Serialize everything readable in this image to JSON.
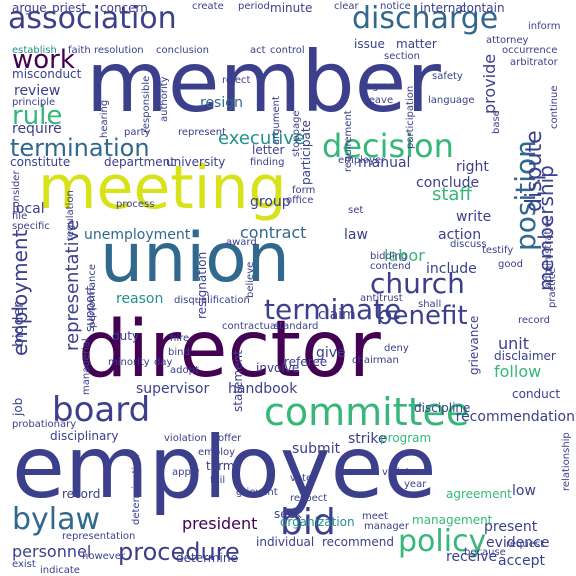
{
  "palette": {
    "dark_purple": "#440154",
    "indigo": "#3b3f8c",
    "blue": "#31688e",
    "teal": "#21918c",
    "green": "#35b779",
    "light_green": "#7ad151",
    "yellow": "#d8e219"
  },
  "words": [
    {
      "text": "employee",
      "color": "#3b3f8c"
    },
    {
      "text": "member",
      "color": "#3b3f8c"
    },
    {
      "text": "director",
      "color": "#440154"
    },
    {
      "text": "meeting",
      "color": "#d8e219"
    },
    {
      "text": "union",
      "color": "#31688e"
    },
    {
      "text": "association",
      "color": "#3b3f8c"
    },
    {
      "text": "discharge",
      "color": "#31688e"
    },
    {
      "text": "committee",
      "color": "#35b779"
    },
    {
      "text": "board",
      "color": "#3b3f8c"
    },
    {
      "text": "position",
      "color": "#31688e"
    },
    {
      "text": "church",
      "color": "#3b3f8c"
    },
    {
      "text": "decision",
      "color": "#35b779"
    },
    {
      "text": "termination",
      "color": "#31688e"
    },
    {
      "text": "terminate",
      "color": "#3b3f8c"
    },
    {
      "text": "policy",
      "color": "#35b779"
    },
    {
      "text": "bid",
      "color": "#3b3f8c"
    },
    {
      "text": "bylaw",
      "color": "#31688e"
    },
    {
      "text": "procedure",
      "color": "#3b3f8c"
    },
    {
      "text": "benefit",
      "color": "#3b3f8c"
    },
    {
      "text": "work",
      "color": "#440154"
    },
    {
      "text": "rule",
      "color": "#35b779"
    },
    {
      "text": "employment",
      "color": "#3b3f8c"
    },
    {
      "text": "membership",
      "color": "#3b3f8c"
    },
    {
      "text": "dispute",
      "color": "#3b3f8c"
    },
    {
      "text": "representative",
      "color": "#3b3f8c"
    },
    {
      "text": "executive",
      "color": "#21918c"
    },
    {
      "text": "review",
      "color": "#3b3f8c"
    },
    {
      "text": "staff",
      "color": "#35b779"
    },
    {
      "text": "contract",
      "color": "#31688e"
    },
    {
      "text": "unemployment",
      "color": "#31688e"
    },
    {
      "text": "labor",
      "color": "#35b779"
    },
    {
      "text": "action",
      "color": "#3b3f8c"
    },
    {
      "text": "right",
      "color": "#3b3f8c"
    },
    {
      "text": "provide",
      "color": "#3b3f8c"
    },
    {
      "text": "conclude",
      "color": "#3b3f8c"
    },
    {
      "text": "recommendation",
      "color": "#3b3f8c"
    },
    {
      "text": "follow",
      "color": "#35b779"
    },
    {
      "text": "unit",
      "color": "#3b3f8c"
    },
    {
      "text": "president",
      "color": "#440154"
    },
    {
      "text": "bidder",
      "color": "#3b3f8c"
    },
    {
      "text": "supervisor",
      "color": "#3b3f8c"
    },
    {
      "text": "handbook",
      "color": "#3b3f8c"
    },
    {
      "text": "disciplinary",
      "color": "#3b3f8c"
    },
    {
      "text": "group",
      "color": "#3b3f8c"
    },
    {
      "text": "include",
      "color": "#3b3f8c"
    },
    {
      "text": "resign",
      "color": "#31688e"
    },
    {
      "text": "resignation",
      "color": "#3b3f8c"
    },
    {
      "text": "reason",
      "color": "#21918c"
    },
    {
      "text": "law",
      "color": "#3b3f8c"
    },
    {
      "text": "write",
      "color": "#3b3f8c"
    },
    {
      "text": "manual",
      "color": "#3b3f8c"
    },
    {
      "text": "local",
      "color": "#3b3f8c"
    },
    {
      "text": "require",
      "color": "#3b3f8c"
    },
    {
      "text": "constitute",
      "color": "#3b3f8c"
    },
    {
      "text": "department",
      "color": "#3b3f8c"
    },
    {
      "text": "university",
      "color": "#3b3f8c"
    },
    {
      "text": "letter",
      "color": "#3b3f8c"
    },
    {
      "text": "concern",
      "color": "#3b3f8c"
    },
    {
      "text": "minute",
      "color": "#3b3f8c"
    },
    {
      "text": "issue",
      "color": "#3b3f8c"
    },
    {
      "text": "matter",
      "color": "#3b3f8c"
    },
    {
      "text": "statement",
      "color": "#3b3f8c"
    },
    {
      "text": "submit",
      "color": "#3b3f8c"
    },
    {
      "text": "strike",
      "color": "#3b3f8c"
    },
    {
      "text": "program",
      "color": "#35b779"
    },
    {
      "text": "organization",
      "color": "#21918c"
    },
    {
      "text": "individual",
      "color": "#3b3f8c"
    },
    {
      "text": "recommend",
      "color": "#3b3f8c"
    },
    {
      "text": "determine",
      "color": "#3b3f8c"
    },
    {
      "text": "seek",
      "color": "#3b3f8c"
    },
    {
      "text": "record",
      "color": "#3b3f8c"
    },
    {
      "text": "term",
      "color": "#3b3f8c"
    },
    {
      "text": "personnel",
      "color": "#3b3f8c"
    },
    {
      "text": "receive",
      "color": "#3b3f8c"
    },
    {
      "text": "evidence",
      "color": "#3b3f8c"
    },
    {
      "text": "accept",
      "color": "#3b3f8c"
    },
    {
      "text": "conduct",
      "color": "#3b3f8c"
    },
    {
      "text": "present",
      "color": "#3b3f8c"
    },
    {
      "text": "management",
      "color": "#35b779"
    },
    {
      "text": "low",
      "color": "#3b3f8c"
    },
    {
      "text": "agreement",
      "color": "#35b779"
    },
    {
      "text": "give",
      "color": "#3b3f8c"
    },
    {
      "text": "claim",
      "color": "#3b3f8c"
    },
    {
      "text": "support",
      "color": "#3b3f8c"
    },
    {
      "text": "duty",
      "color": "#3b3f8c"
    },
    {
      "text": "job",
      "color": "#3b3f8c"
    },
    {
      "text": "argue",
      "color": "#3b3f8c"
    },
    {
      "text": "priest",
      "color": "#3b3f8c"
    },
    {
      "text": "create",
      "color": "#3b3f8c"
    },
    {
      "text": "period",
      "color": "#3b3f8c"
    },
    {
      "text": "clear",
      "color": "#3b3f8c"
    },
    {
      "text": "notice",
      "color": "#3b3f8c"
    },
    {
      "text": "internal",
      "color": "#3b3f8c"
    },
    {
      "text": "contain",
      "color": "#3b3f8c"
    },
    {
      "text": "establish",
      "color": "#21918c"
    },
    {
      "text": "faith",
      "color": "#3b3f8c"
    },
    {
      "text": "resolution",
      "color": "#3b3f8c"
    },
    {
      "text": "conclusion",
      "color": "#3b3f8c"
    },
    {
      "text": "act",
      "color": "#3b3f8c"
    },
    {
      "text": "control",
      "color": "#3b3f8c"
    },
    {
      "text": "misconduct",
      "color": "#3b3f8c"
    },
    {
      "text": "agree",
      "color": "#3b3f8c"
    },
    {
      "text": "leave",
      "color": "#3b3f8c"
    },
    {
      "text": "participation",
      "color": "#3b3f8c"
    },
    {
      "text": "language",
      "color": "#3b3f8c"
    },
    {
      "text": "participate",
      "color": "#3b3f8c"
    },
    {
      "text": "employer",
      "color": "#3b3f8c"
    },
    {
      "text": "finding",
      "color": "#3b3f8c"
    },
    {
      "text": "argument",
      "color": "#3b3f8c"
    },
    {
      "text": "requirement",
      "color": "#3b3f8c"
    },
    {
      "text": "administrative",
      "color": "#3b3f8c"
    },
    {
      "text": "practice",
      "color": "#3b3f8c"
    },
    {
      "text": "grievance",
      "color": "#3b3f8c"
    },
    {
      "text": "discipline",
      "color": "#3b3f8c"
    },
    {
      "text": "referee",
      "color": "#3b3f8c"
    },
    {
      "text": "involve",
      "color": "#3b3f8c"
    },
    {
      "text": "chairman",
      "color": "#3b3f8c"
    },
    {
      "text": "deny",
      "color": "#3b3f8c"
    },
    {
      "text": "disclaimer",
      "color": "#3b3f8c"
    },
    {
      "text": "minority",
      "color": "#3b3f8c"
    },
    {
      "text": "hire",
      "color": "#3b3f8c"
    },
    {
      "text": "bind",
      "color": "#3b3f8c"
    },
    {
      "text": "adopt",
      "color": "#3b3f8c"
    },
    {
      "text": "violation",
      "color": "#3b3f8c"
    },
    {
      "text": "offer",
      "color": "#3b3f8c"
    },
    {
      "text": "apply",
      "color": "#3b3f8c"
    },
    {
      "text": "employ",
      "color": "#3b3f8c"
    },
    {
      "text": "fail",
      "color": "#3b3f8c"
    },
    {
      "text": "vote",
      "color": "#3b3f8c"
    },
    {
      "text": "respect",
      "color": "#3b3f8c"
    },
    {
      "text": "violate",
      "color": "#3b3f8c"
    },
    {
      "text": "year",
      "color": "#3b3f8c"
    },
    {
      "text": "meet",
      "color": "#3b3f8c"
    },
    {
      "text": "manager",
      "color": "#3b3f8c"
    },
    {
      "text": "because",
      "color": "#3b3f8c"
    },
    {
      "text": "request",
      "color": "#3b3f8c"
    },
    {
      "text": "representation",
      "color": "#3b3f8c"
    },
    {
      "text": "exist",
      "color": "#3b3f8c"
    },
    {
      "text": "however",
      "color": "#3b3f8c"
    },
    {
      "text": "indicate",
      "color": "#3b3f8c"
    },
    {
      "text": "file",
      "color": "#3b3f8c"
    },
    {
      "text": "specific",
      "color": "#3b3f8c"
    },
    {
      "text": "set",
      "color": "#3b3f8c"
    },
    {
      "text": "form",
      "color": "#3b3f8c"
    },
    {
      "text": "office",
      "color": "#3b3f8c"
    },
    {
      "text": "process",
      "color": "#3b3f8c"
    },
    {
      "text": "award",
      "color": "#3b3f8c"
    },
    {
      "text": "believe",
      "color": "#3b3f8c"
    },
    {
      "text": "bidding",
      "color": "#3b3f8c"
    },
    {
      "text": "contend",
      "color": "#3b3f8c"
    },
    {
      "text": "discuss",
      "color": "#3b3f8c"
    },
    {
      "text": "testify",
      "color": "#3b3f8c"
    },
    {
      "text": "good",
      "color": "#3b3f8c"
    },
    {
      "text": "reject",
      "color": "#3b3f8c"
    },
    {
      "text": "safety",
      "color": "#3b3f8c"
    },
    {
      "text": "base",
      "color": "#3b3f8c"
    },
    {
      "text": "continue",
      "color": "#3b3f8c"
    },
    {
      "text": "principle",
      "color": "#3b3f8c"
    },
    {
      "text": "hearing",
      "color": "#3b3f8c"
    },
    {
      "text": "responsible",
      "color": "#3b3f8c"
    },
    {
      "text": "authority",
      "color": "#3b3f8c"
    },
    {
      "text": "stoppage",
      "color": "#3b3f8c"
    },
    {
      "text": "party",
      "color": "#3b3f8c"
    },
    {
      "text": "represent",
      "color": "#3b3f8c"
    },
    {
      "text": "performance",
      "color": "#3b3f8c"
    },
    {
      "text": "disqualification",
      "color": "#3b3f8c"
    },
    {
      "text": "determination",
      "color": "#3b3f8c"
    },
    {
      "text": "probationary",
      "color": "#3b3f8c"
    },
    {
      "text": "managerial",
      "color": "#3b3f8c"
    },
    {
      "text": "relationship",
      "color": "#3b3f8c"
    },
    {
      "text": "grievant",
      "color": "#3b3f8c"
    },
    {
      "text": "consider",
      "color": "#3b3f8c"
    },
    {
      "text": "regulation",
      "color": "#3b3f8c"
    },
    {
      "text": "antitrust",
      "color": "#3b3f8c"
    },
    {
      "text": "shall",
      "color": "#3b3f8c"
    },
    {
      "text": "record",
      "color": "#3b3f8c"
    },
    {
      "text": "contractual",
      "color": "#3b3f8c"
    },
    {
      "text": "standard",
      "color": "#3b3f8c"
    },
    {
      "text": "day",
      "color": "#3b3f8c"
    },
    {
      "text": "inform",
      "color": "#3b3f8c"
    },
    {
      "text": "occurrence",
      "color": "#3b3f8c"
    },
    {
      "text": "section",
      "color": "#3b3f8c"
    },
    {
      "text": "attorney",
      "color": "#3b3f8c"
    },
    {
      "text": "arbitrator",
      "color": "#3b3f8c"
    }
  ]
}
